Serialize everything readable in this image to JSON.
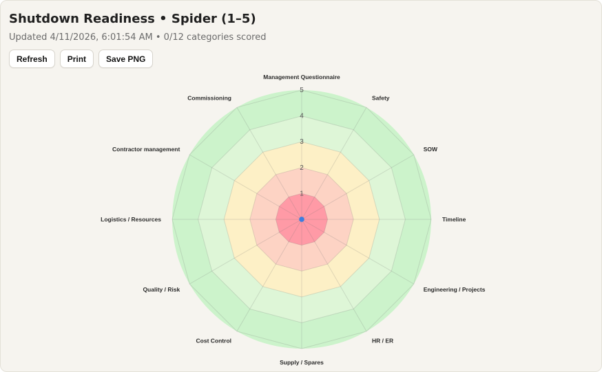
{
  "header": {
    "title": "Shutdown Readiness • Spider (1–5)",
    "subtitle": "Updated 4/11/2026, 6:01:54 AM • 0/12 categories scored"
  },
  "toolbar": {
    "refresh_label": "Refresh",
    "print_label": "Print",
    "save_label": "Save PNG"
  },
  "chart_data": {
    "type": "radar",
    "categories": [
      "Management Questionnaire",
      "Safety",
      "SOW",
      "Timeline",
      "Engineering / Projects",
      "HR / ER",
      "Supply / Spares",
      "Cost Control",
      "Quality / Risk",
      "Logistics / Resources",
      "Contractor management",
      "Commissioning"
    ],
    "scale_min": 0,
    "scale_max": 5,
    "tick_labels": [
      "1",
      "2",
      "3",
      "4",
      "5"
    ],
    "bands": [
      {
        "from": 0,
        "to": 1,
        "color": "#ff9aa6"
      },
      {
        "from": 1,
        "to": 2,
        "color": "#fdd3c4"
      },
      {
        "from": 2,
        "to": 3,
        "color": "#fdf0c6"
      },
      {
        "from": 3,
        "to": 4,
        "color": "#def6d7"
      },
      {
        "from": 4,
        "to": 5,
        "color": "#ccf3cb"
      }
    ],
    "series": [
      {
        "values": [
          0,
          0,
          0,
          0,
          0,
          0,
          0,
          0,
          0,
          0,
          0,
          0
        ],
        "color": "#3b7de0"
      }
    ],
    "grid": true
  }
}
